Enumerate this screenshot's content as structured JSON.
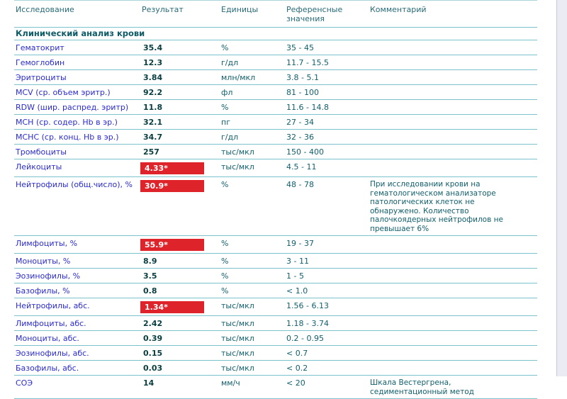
{
  "section_title": "Клинический анализ крови",
  "columns": [
    "Исследование",
    "Результат",
    "Единицы",
    "Референсные значения",
    "Комментарий"
  ],
  "rows": [
    {
      "name": "Гематокрит",
      "result": "35.4",
      "abnormal": false,
      "units": "%",
      "reference": "35 - 45",
      "comment": ""
    },
    {
      "name": "Гемоглобин",
      "result": "12.3",
      "abnormal": false,
      "units": "г/дл",
      "reference": "11.7 - 15.5",
      "comment": ""
    },
    {
      "name": "Эритроциты",
      "result": "3.84",
      "abnormal": false,
      "units": "млн/мкл",
      "reference": "3.8 - 5.1",
      "comment": ""
    },
    {
      "name": "MCV (ср. объем эритр.)",
      "result": "92.2",
      "abnormal": false,
      "units": "фл",
      "reference": "81 - 100",
      "comment": ""
    },
    {
      "name": "RDW (шир. распред. эритр)",
      "result": "11.8",
      "abnormal": false,
      "units": "%",
      "reference": "11.6 - 14.8",
      "comment": ""
    },
    {
      "name": "MCH (ср. содер. Hb в эр.)",
      "result": "32.1",
      "abnormal": false,
      "units": "пг",
      "reference": "27 - 34",
      "comment": ""
    },
    {
      "name": "MCHC (ср. конц. Hb в эр.)",
      "result": "34.7",
      "abnormal": false,
      "units": "г/дл",
      "reference": "32 - 36",
      "comment": ""
    },
    {
      "name": "Тромбоциты",
      "result": "257",
      "abnormal": false,
      "units": "тыс/мкл",
      "reference": "150 - 400",
      "comment": ""
    },
    {
      "name": "Лейкоциты",
      "result": "4.33*",
      "abnormal": true,
      "units": "тыс/мкл",
      "reference": "4.5 - 11",
      "comment": ""
    },
    {
      "name": "Нейтрофилы (общ.число), %",
      "result": "30.9*",
      "abnormal": true,
      "units": "%",
      "reference": "48 - 78",
      "comment": "При исследовании крови на гематологическом анализаторе патологических клеток не обнаружено. Количество палочкоядерных нейтрофилов не превышает 6%"
    },
    {
      "name": "Лимфоциты, %",
      "result": "55.9*",
      "abnormal": true,
      "units": "%",
      "reference": "19 - 37",
      "comment": ""
    },
    {
      "name": "Моноциты, %",
      "result": "8.9",
      "abnormal": false,
      "units": "%",
      "reference": "3 - 11",
      "comment": ""
    },
    {
      "name": "Эозинофилы, %",
      "result": "3.5",
      "abnormal": false,
      "units": "%",
      "reference": "1 - 5",
      "comment": ""
    },
    {
      "name": "Базофилы, %",
      "result": "0.8",
      "abnormal": false,
      "units": "%",
      "reference": "< 1.0",
      "comment": ""
    },
    {
      "name": "Нейтрофилы, абс.",
      "result": "1.34*",
      "abnormal": true,
      "units": "тыс/мкл",
      "reference": "1.56 - 6.13",
      "comment": ""
    },
    {
      "name": "Лимфоциты, абс.",
      "result": "2.42",
      "abnormal": false,
      "units": "тыс/мкл",
      "reference": "1.18 - 3.74",
      "comment": ""
    },
    {
      "name": "Моноциты, абс.",
      "result": "0.39",
      "abnormal": false,
      "units": "тыс/мкл",
      "reference": "0.2 - 0.95",
      "comment": ""
    },
    {
      "name": "Эозинофилы, абс.",
      "result": "0.15",
      "abnormal": false,
      "units": "тыс/мкл",
      "reference": "< 0.7",
      "comment": ""
    },
    {
      "name": "Базофилы, абс.",
      "result": "0.03",
      "abnormal": false,
      "units": "тыс/мкл",
      "reference": "< 0.2",
      "comment": ""
    },
    {
      "name": "СОЭ",
      "result": "14",
      "abnormal": false,
      "units": "мм/ч",
      "reference": "< 20",
      "comment": "Шкала Вестергрена, седиментационный метод"
    }
  ],
  "colors": {
    "abnormal_result_bg": "#df232b",
    "abnormal_result_text": "#ffffff",
    "test_name_text": "#2b2bd1",
    "result_text": "#093e41",
    "body_teal_text": "#12606d",
    "header_text": "#276b78",
    "section_text": "#0c5b67",
    "rule_line": "#7cc2cc",
    "page_edge_bg": "#ebebf3"
  }
}
